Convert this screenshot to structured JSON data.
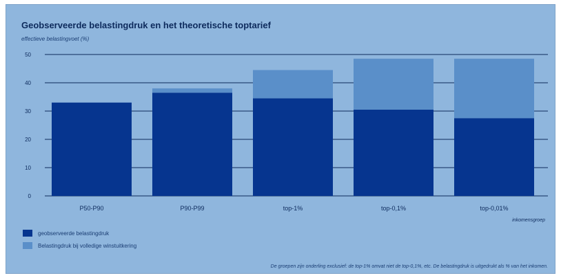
{
  "colors": {
    "observed": "#06358f",
    "full": "#5a8fc9",
    "grid": "#0d2a5c",
    "text": "#0d2a5c"
  },
  "chart_data": {
    "type": "bar",
    "stacked": true,
    "title": "Geobserveerde belastingdruk en het theoretische toptarief",
    "ylabel": "effectieve belastingvoet (%)",
    "xlabel": "inkomensgroep",
    "ylim": [
      0,
      50
    ],
    "yticks": [
      0,
      10,
      20,
      30,
      40,
      50
    ],
    "grid": true,
    "legend_position": "bottom-left",
    "categories": [
      "P50-P90",
      "P90-P99",
      "top-1%",
      "top-0,1%",
      "top-0,01%"
    ],
    "series": [
      {
        "name": "geobserveerde belastingdruk",
        "values": [
          33,
          36.5,
          34.5,
          30.5,
          27.5
        ]
      },
      {
        "name": "Belastingdruk bij volledige winstuitkering",
        "values": [
          0,
          1.5,
          10,
          18,
          21
        ]
      }
    ]
  },
  "footnote": "De groepen zijn onderling exclusief: de top-1% omvat niet de top-0,1%, etc. De belastingdruk is uitgedrukt als % van het inkomen."
}
